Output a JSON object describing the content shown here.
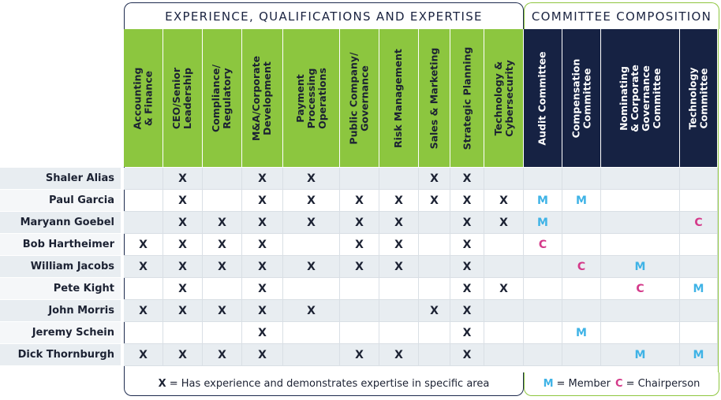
{
  "titles": {
    "experience": "EXPERIENCE, QUALIFICATIONS AND EXPERTISE",
    "committee": "COMMITTEE COMPOSITION"
  },
  "experience_columns": [
    [
      "Accounting",
      "& Finance"
    ],
    [
      "CEO/Senior",
      "Leadership"
    ],
    [
      "Compliance/",
      "Regulatory"
    ],
    [
      "M&A/Corporate",
      "Development"
    ],
    [
      "Payment",
      "Processing",
      "Operations"
    ],
    [
      "Public Company/",
      "Governance"
    ],
    [
      "Risk Management"
    ],
    [
      "Sales & Marketing"
    ],
    [
      "Strategic Planning"
    ],
    [
      "Technology &",
      "Cybersecurity"
    ]
  ],
  "committee_columns": [
    [
      "Audit Committee"
    ],
    [
      "Compensation",
      "Committee"
    ],
    [
      "Nominating",
      "& Corporate",
      "Governance",
      "Committee"
    ],
    [
      "Technology",
      "Committee"
    ]
  ],
  "directors": [
    {
      "name": "Shaler Alias",
      "exp": [
        "",
        "X",
        "",
        "X",
        "X",
        "",
        "",
        "X",
        "X",
        ""
      ],
      "com": [
        "",
        "",
        "",
        ""
      ]
    },
    {
      "name": "Paul Garcia",
      "exp": [
        "",
        "X",
        "",
        "X",
        "X",
        "X",
        "X",
        "X",
        "X",
        "X"
      ],
      "com": [
        "M",
        "M",
        "",
        ""
      ]
    },
    {
      "name": "Maryann Goebel",
      "exp": [
        "",
        "X",
        "X",
        "X",
        "X",
        "X",
        "X",
        "",
        "X",
        "X"
      ],
      "com": [
        "M",
        "",
        "",
        "C"
      ]
    },
    {
      "name": "Bob Hartheimer",
      "exp": [
        "X",
        "X",
        "X",
        "X",
        "",
        "X",
        "X",
        "",
        "X",
        ""
      ],
      "com": [
        "C",
        "",
        "",
        ""
      ]
    },
    {
      "name": "William Jacobs",
      "exp": [
        "X",
        "X",
        "X",
        "X",
        "X",
        "X",
        "X",
        "",
        "X",
        ""
      ],
      "com": [
        "",
        "C",
        "M",
        ""
      ]
    },
    {
      "name": "Pete Kight",
      "exp": [
        "",
        "X",
        "",
        "X",
        "",
        "",
        "",
        "",
        "X",
        "X"
      ],
      "com": [
        "",
        "",
        "C",
        "M"
      ]
    },
    {
      "name": "John Morris",
      "exp": [
        "X",
        "X",
        "X",
        "X",
        "X",
        "",
        "",
        "X",
        "X",
        ""
      ],
      "com": [
        "",
        "",
        "",
        ""
      ]
    },
    {
      "name": "Jeremy Schein",
      "exp": [
        "",
        "",
        "",
        "X",
        "",
        "",
        "",
        "",
        "X",
        ""
      ],
      "com": [
        "",
        "M",
        "",
        ""
      ]
    },
    {
      "name": "Dick Thornburgh",
      "exp": [
        "X",
        "X",
        "X",
        "X",
        "",
        "X",
        "X",
        "",
        "X",
        ""
      ],
      "com": [
        "",
        "",
        "M",
        "M"
      ]
    }
  ],
  "legend": {
    "x_mark": "X",
    "x_text": "= Has experience and demonstrates expertise in specific area",
    "m_mark": "M",
    "m_text": "= Member",
    "c_mark": "C",
    "c_text": "= Chairperson"
  },
  "colors": {
    "experience_header": "#8cc63f",
    "committee_header": "#162243",
    "member": "#3fb3e6",
    "chair": "#d43a8a"
  }
}
